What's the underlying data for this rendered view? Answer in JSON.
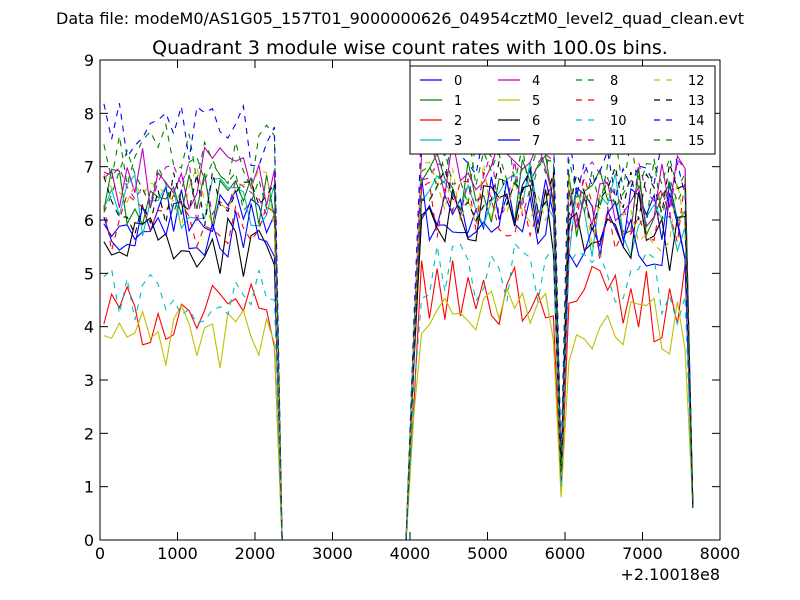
{
  "chart_data": {
    "type": "line",
    "suptitle": "Data file: modeM0/AS1G05_157T01_9000000626_04954cztM0_level2_quad_clean.evt",
    "title": "Quadrant 3 module wise count rates with 100.0s bins.",
    "xlabel": "",
    "ylabel": "",
    "x_offset_label": "+2.10018e8",
    "xlim": [
      0,
      8000
    ],
    "ylim": [
      0,
      9
    ],
    "x_ticks": [
      "0",
      "1000",
      "2000",
      "3000",
      "4000",
      "5000",
      "6000",
      "7000",
      "8000"
    ],
    "y_ticks": [
      "0",
      "1",
      "2",
      "3",
      "4",
      "5",
      "6",
      "7",
      "8",
      "9"
    ],
    "grid": false,
    "legend_position": "top-right",
    "segments": [
      [
        50,
        2350
      ],
      [
        2350,
        4000
      ],
      [
        4000,
        5900
      ],
      [
        5900,
        6050
      ],
      [
        6050,
        7650
      ]
    ],
    "series": [
      {
        "name": "0",
        "color": "#0000ff",
        "dash": "solid",
        "levels": [
          6.2,
          0,
          6.4,
          1.1,
          6.0
        ]
      },
      {
        "name": "1",
        "color": "#008000",
        "dash": "solid",
        "levels": [
          6.4,
          0,
          6.6,
          1.2,
          6.2
        ]
      },
      {
        "name": "2",
        "color": "#ff0000",
        "dash": "solid",
        "levels": [
          4.2,
          0,
          4.6,
          0.9,
          4.5
        ]
      },
      {
        "name": "3",
        "color": "#00bfbf",
        "dash": "solid",
        "levels": [
          6.3,
          0,
          6.5,
          1.2,
          6.1
        ]
      },
      {
        "name": "4",
        "color": "#bf00bf",
        "dash": "solid",
        "levels": [
          6.8,
          0,
          6.9,
          1.3,
          6.5
        ]
      },
      {
        "name": "5",
        "color": "#bfbf00",
        "dash": "solid",
        "levels": [
          3.8,
          0,
          4.3,
          0.8,
          4.0
        ]
      },
      {
        "name": "6",
        "color": "#000000",
        "dash": "solid",
        "levels": [
          5.5,
          0,
          6.0,
          1.1,
          5.8
        ]
      },
      {
        "name": "7",
        "color": "#0000ff",
        "dash": "solid",
        "levels": [
          5.9,
          0,
          6.2,
          1.1,
          5.9
        ]
      },
      {
        "name": "8",
        "color": "#008000",
        "dash": "dashed",
        "levels": [
          7.2,
          0,
          7.1,
          1.4,
          6.8
        ]
      },
      {
        "name": "9",
        "color": "#ff0000",
        "dash": "dashed",
        "levels": [
          6.0,
          0,
          6.3,
          1.2,
          6.0
        ]
      },
      {
        "name": "10",
        "color": "#00bfbf",
        "dash": "dashed",
        "levels": [
          4.6,
          0,
          5.0,
          1.0,
          4.7
        ]
      },
      {
        "name": "11",
        "color": "#bf00bf",
        "dash": "dashed",
        "levels": [
          6.5,
          0,
          6.7,
          1.3,
          6.4
        ]
      },
      {
        "name": "12",
        "color": "#bfbf00",
        "dash": "dashed",
        "levels": [
          6.4,
          0,
          6.5,
          1.2,
          6.2
        ]
      },
      {
        "name": "13",
        "color": "#000000",
        "dash": "dashed",
        "levels": [
          6.3,
          0,
          6.6,
          1.3,
          6.3
        ]
      },
      {
        "name": "14",
        "color": "#0000ff",
        "dash": "dashed",
        "levels": [
          7.6,
          0,
          7.5,
          1.5,
          7.0
        ]
      },
      {
        "name": "15",
        "color": "#008000",
        "dash": "dashed",
        "levels": [
          6.7,
          0,
          6.9,
          1.3,
          6.5
        ]
      }
    ]
  }
}
